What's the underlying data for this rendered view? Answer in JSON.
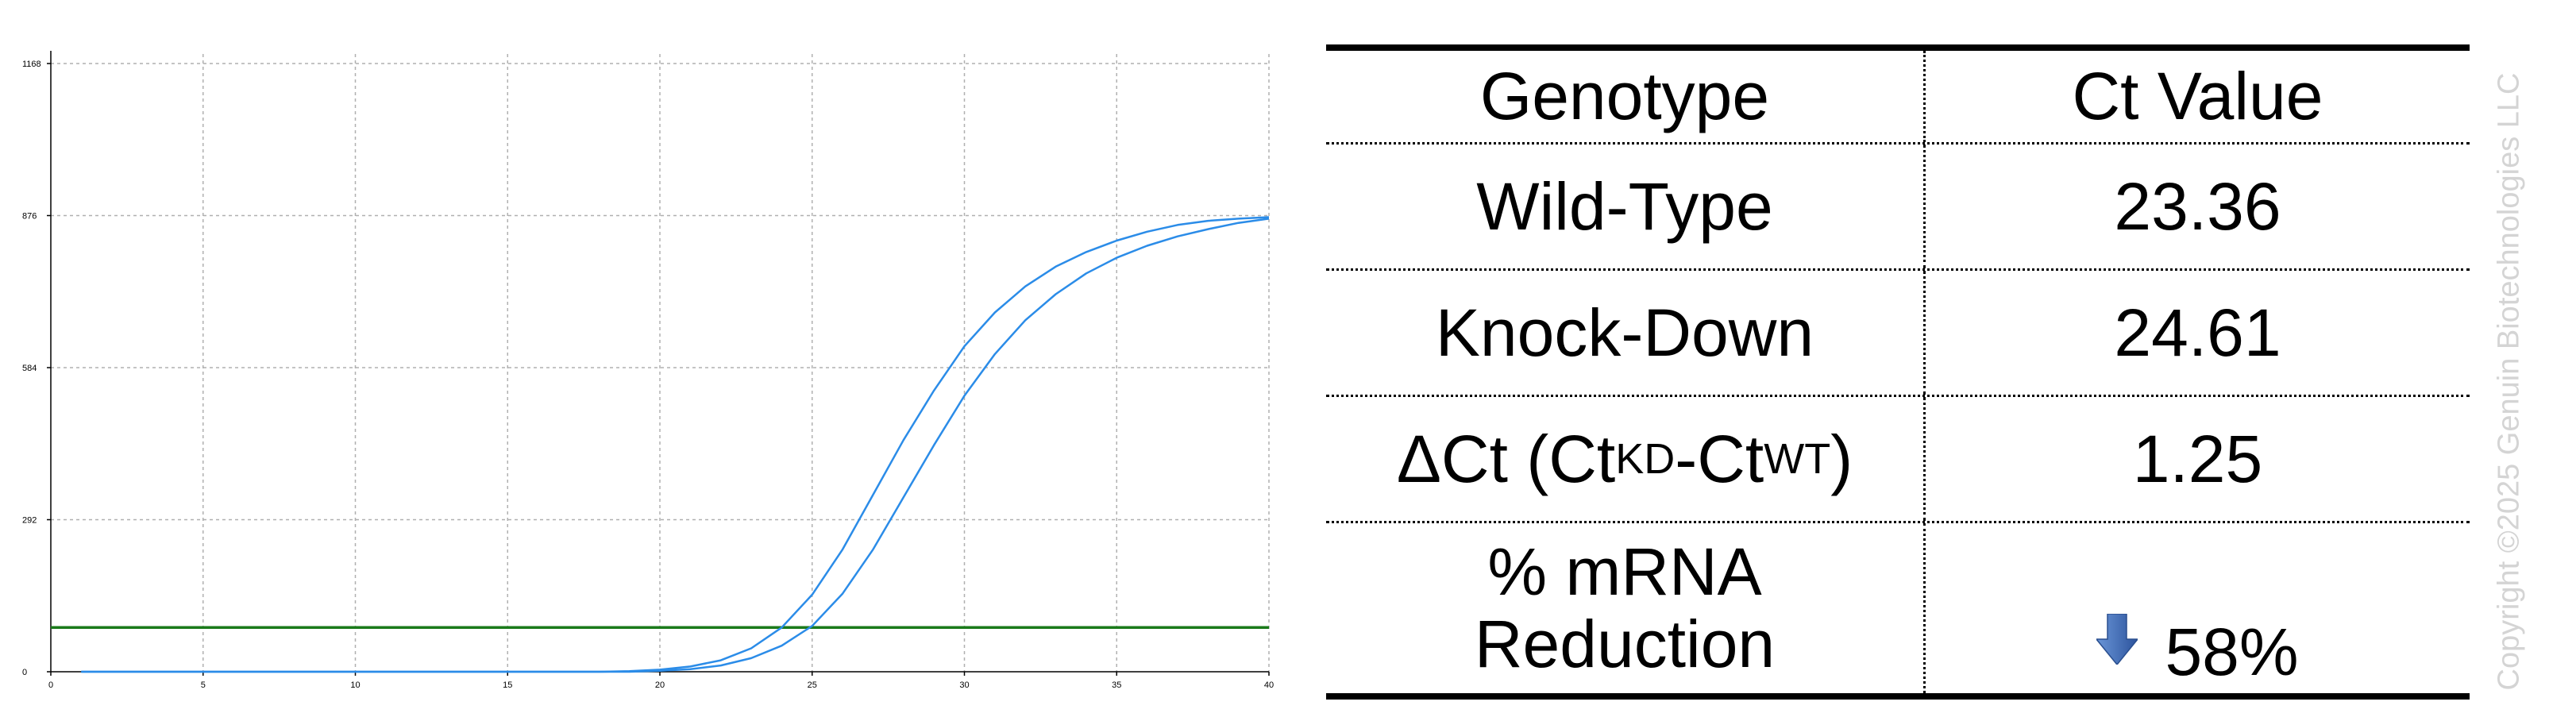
{
  "chart_data": {
    "type": "line",
    "title": "",
    "xlabel": "",
    "ylabel": "",
    "xlim": [
      0,
      40
    ],
    "ylim": [
      0,
      1168
    ],
    "x_ticks": [
      0,
      5,
      10,
      15,
      20,
      25,
      30,
      35,
      40
    ],
    "y_ticks": [
      0,
      292,
      584,
      876,
      1168
    ],
    "grid": true,
    "threshold": 85,
    "colors": {
      "curve": "#2b8ce8",
      "threshold": "#1a7a1a",
      "grid": "#b0b0b0"
    },
    "x": [
      1,
      2,
      3,
      4,
      5,
      6,
      7,
      8,
      9,
      10,
      11,
      12,
      13,
      14,
      15,
      16,
      17,
      18,
      19,
      20,
      21,
      22,
      23,
      24,
      25,
      26,
      27,
      28,
      29,
      30,
      31,
      32,
      33,
      34,
      35,
      36,
      37,
      38,
      39,
      40
    ],
    "series": [
      {
        "values": [
          0,
          0,
          0,
          0,
          0,
          0,
          0,
          0,
          0,
          0,
          0,
          0,
          0,
          0,
          0,
          0,
          0,
          0,
          1,
          4,
          10,
          22,
          45,
          85,
          148,
          235,
          340,
          445,
          540,
          625,
          690,
          740,
          778,
          806,
          828,
          845,
          858,
          866,
          870,
          873
        ]
      },
      {
        "values": [
          0,
          0,
          0,
          0,
          0,
          0,
          0,
          0,
          0,
          0,
          0,
          0,
          0,
          0,
          0,
          0,
          0,
          0,
          0,
          2,
          5,
          12,
          26,
          50,
          88,
          150,
          235,
          335,
          435,
          530,
          610,
          675,
          725,
          765,
          795,
          818,
          836,
          850,
          862,
          870
        ]
      }
    ]
  },
  "table": {
    "header": {
      "genotype": "Genotype",
      "ct_value": "Ct Value"
    },
    "wild_type": {
      "label": "Wild-Type",
      "value": "23.36"
    },
    "knock_down": {
      "label": "Knock-Down",
      "value": "24.61"
    },
    "delta_ct": {
      "prefix": "ΔCt (Ct",
      "sub_kd": "KD",
      "middle": "-Ct",
      "sub_wt": "WT",
      "suffix": ")",
      "value": "1.25"
    },
    "reduction": {
      "label_line1": "% mRNA",
      "label_line2": "Reduction",
      "value": "58%",
      "arrow_icon": "down-arrow-icon",
      "arrow_color": "#3d6ab5"
    }
  },
  "watermark": "Copyright ©2025 Genuin Biotechnologies LLC"
}
